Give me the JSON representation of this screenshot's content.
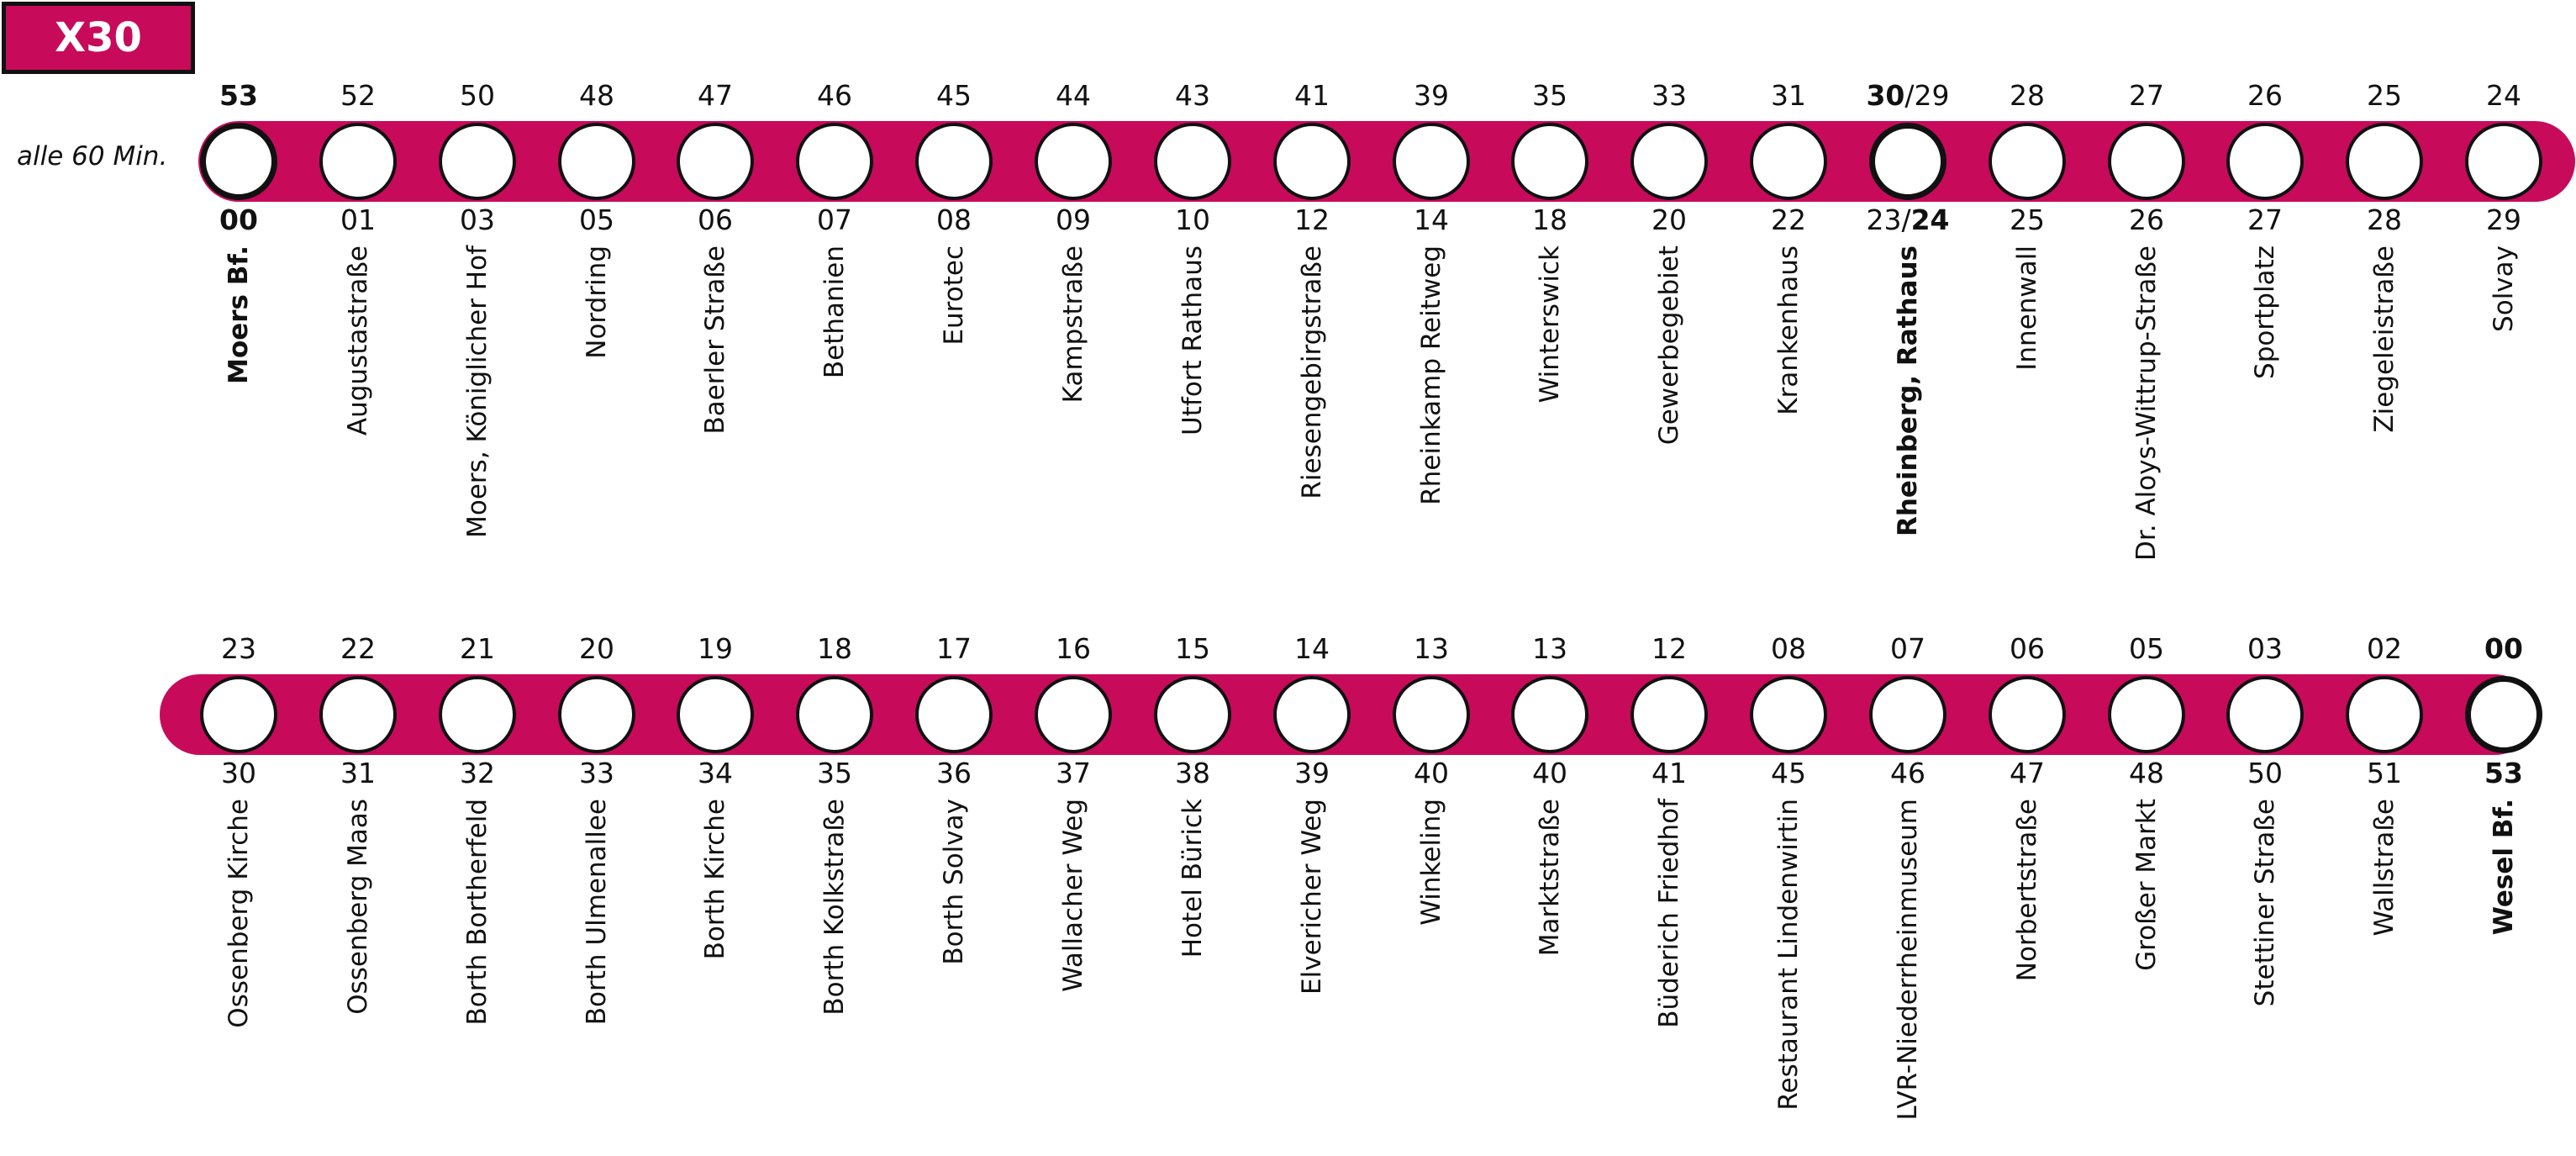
{
  "line": {
    "label": "X30",
    "color": "#c80a5a"
  },
  "interval": "alle 60 Min.",
  "rows": [
    {
      "stops": [
        {
          "name": "Moers Bf.",
          "top": "53",
          "bottom": "00",
          "bold": true,
          "terminal": true
        },
        {
          "name": "Augustastraße",
          "top": "52",
          "bottom": "01"
        },
        {
          "name": "Moers, Königlicher Hof",
          "top": "50",
          "bottom": "03"
        },
        {
          "name": "Nordring",
          "top": "48",
          "bottom": "05"
        },
        {
          "name": "Baerler Straße",
          "top": "47",
          "bottom": "06"
        },
        {
          "name": "Bethanien",
          "top": "46",
          "bottom": "07"
        },
        {
          "name": "Eurotec",
          "top": "45",
          "bottom": "08"
        },
        {
          "name": "Kampstraße",
          "top": "44",
          "bottom": "09"
        },
        {
          "name": "Utfort Rathaus",
          "top": "43",
          "bottom": "10"
        },
        {
          "name": "Riesengebirgstraße",
          "top": "41",
          "bottom": "12"
        },
        {
          "name": "Rheinkamp Reitweg",
          "top": "39",
          "bottom": "14"
        },
        {
          "name": "Winterswick",
          "top": "35",
          "bottom": "18"
        },
        {
          "name": "Gewerbegebiet",
          "top": "33",
          "bottom": "20"
        },
        {
          "name": "Krankenhaus",
          "top": "31",
          "bottom": "22"
        },
        {
          "name": "Rheinberg, Rathaus",
          "top_a": "30",
          "top_b": "29",
          "bottom_a": "23",
          "bottom_b": "24",
          "bold": true,
          "terminal": true,
          "split": true
        },
        {
          "name": "Innenwall",
          "top": "28",
          "bottom": "25"
        },
        {
          "name": "Dr. Aloys-Wittrup-Straße",
          "top": "27",
          "bottom": "26"
        },
        {
          "name": "Sportplatz",
          "top": "26",
          "bottom": "27"
        },
        {
          "name": "Ziegeleistraße",
          "top": "25",
          "bottom": "28"
        },
        {
          "name": "Solvay",
          "top": "24",
          "bottom": "29"
        }
      ]
    },
    {
      "stops": [
        {
          "name": "Ossenberg Kirche",
          "top": "23",
          "bottom": "30"
        },
        {
          "name": "Ossenberg Maas",
          "top": "22",
          "bottom": "31"
        },
        {
          "name": "Borth Bortherfeld",
          "top": "21",
          "bottom": "32"
        },
        {
          "name": "Borth Ulmenallee",
          "top": "20",
          "bottom": "33"
        },
        {
          "name": "Borth Kirche",
          "top": "19",
          "bottom": "34"
        },
        {
          "name": "Borth Kolkstraße",
          "top": "18",
          "bottom": "35"
        },
        {
          "name": "Borth Solvay",
          "top": "17",
          "bottom": "36"
        },
        {
          "name": "Wallacher Weg",
          "top": "16",
          "bottom": "37"
        },
        {
          "name": "Hotel Bürick",
          "top": "15",
          "bottom": "38"
        },
        {
          "name": "Elvericher Weg",
          "top": "14",
          "bottom": "39"
        },
        {
          "name": "Winkeling",
          "top": "13",
          "bottom": "40"
        },
        {
          "name": "Marktstraße",
          "top": "13",
          "bottom": "40"
        },
        {
          "name": "Büderich Friedhof",
          "top": "12",
          "bottom": "41"
        },
        {
          "name": "Restaurant Lindenwirtin",
          "top": "08",
          "bottom": "45"
        },
        {
          "name": "LVR-Niederrheinmuseum",
          "top": "07",
          "bottom": "46"
        },
        {
          "name": "Norbertstraße",
          "top": "06",
          "bottom": "47"
        },
        {
          "name": "Großer Markt",
          "top": "05",
          "bottom": "48"
        },
        {
          "name": "Stettiner Straße",
          "top": "03",
          "bottom": "50"
        },
        {
          "name": "Wallstraße",
          "top": "02",
          "bottom": "51"
        },
        {
          "name": "Wesel Bf.",
          "top": "00",
          "bottom": "53",
          "bold": true,
          "terminal": true
        }
      ]
    }
  ]
}
